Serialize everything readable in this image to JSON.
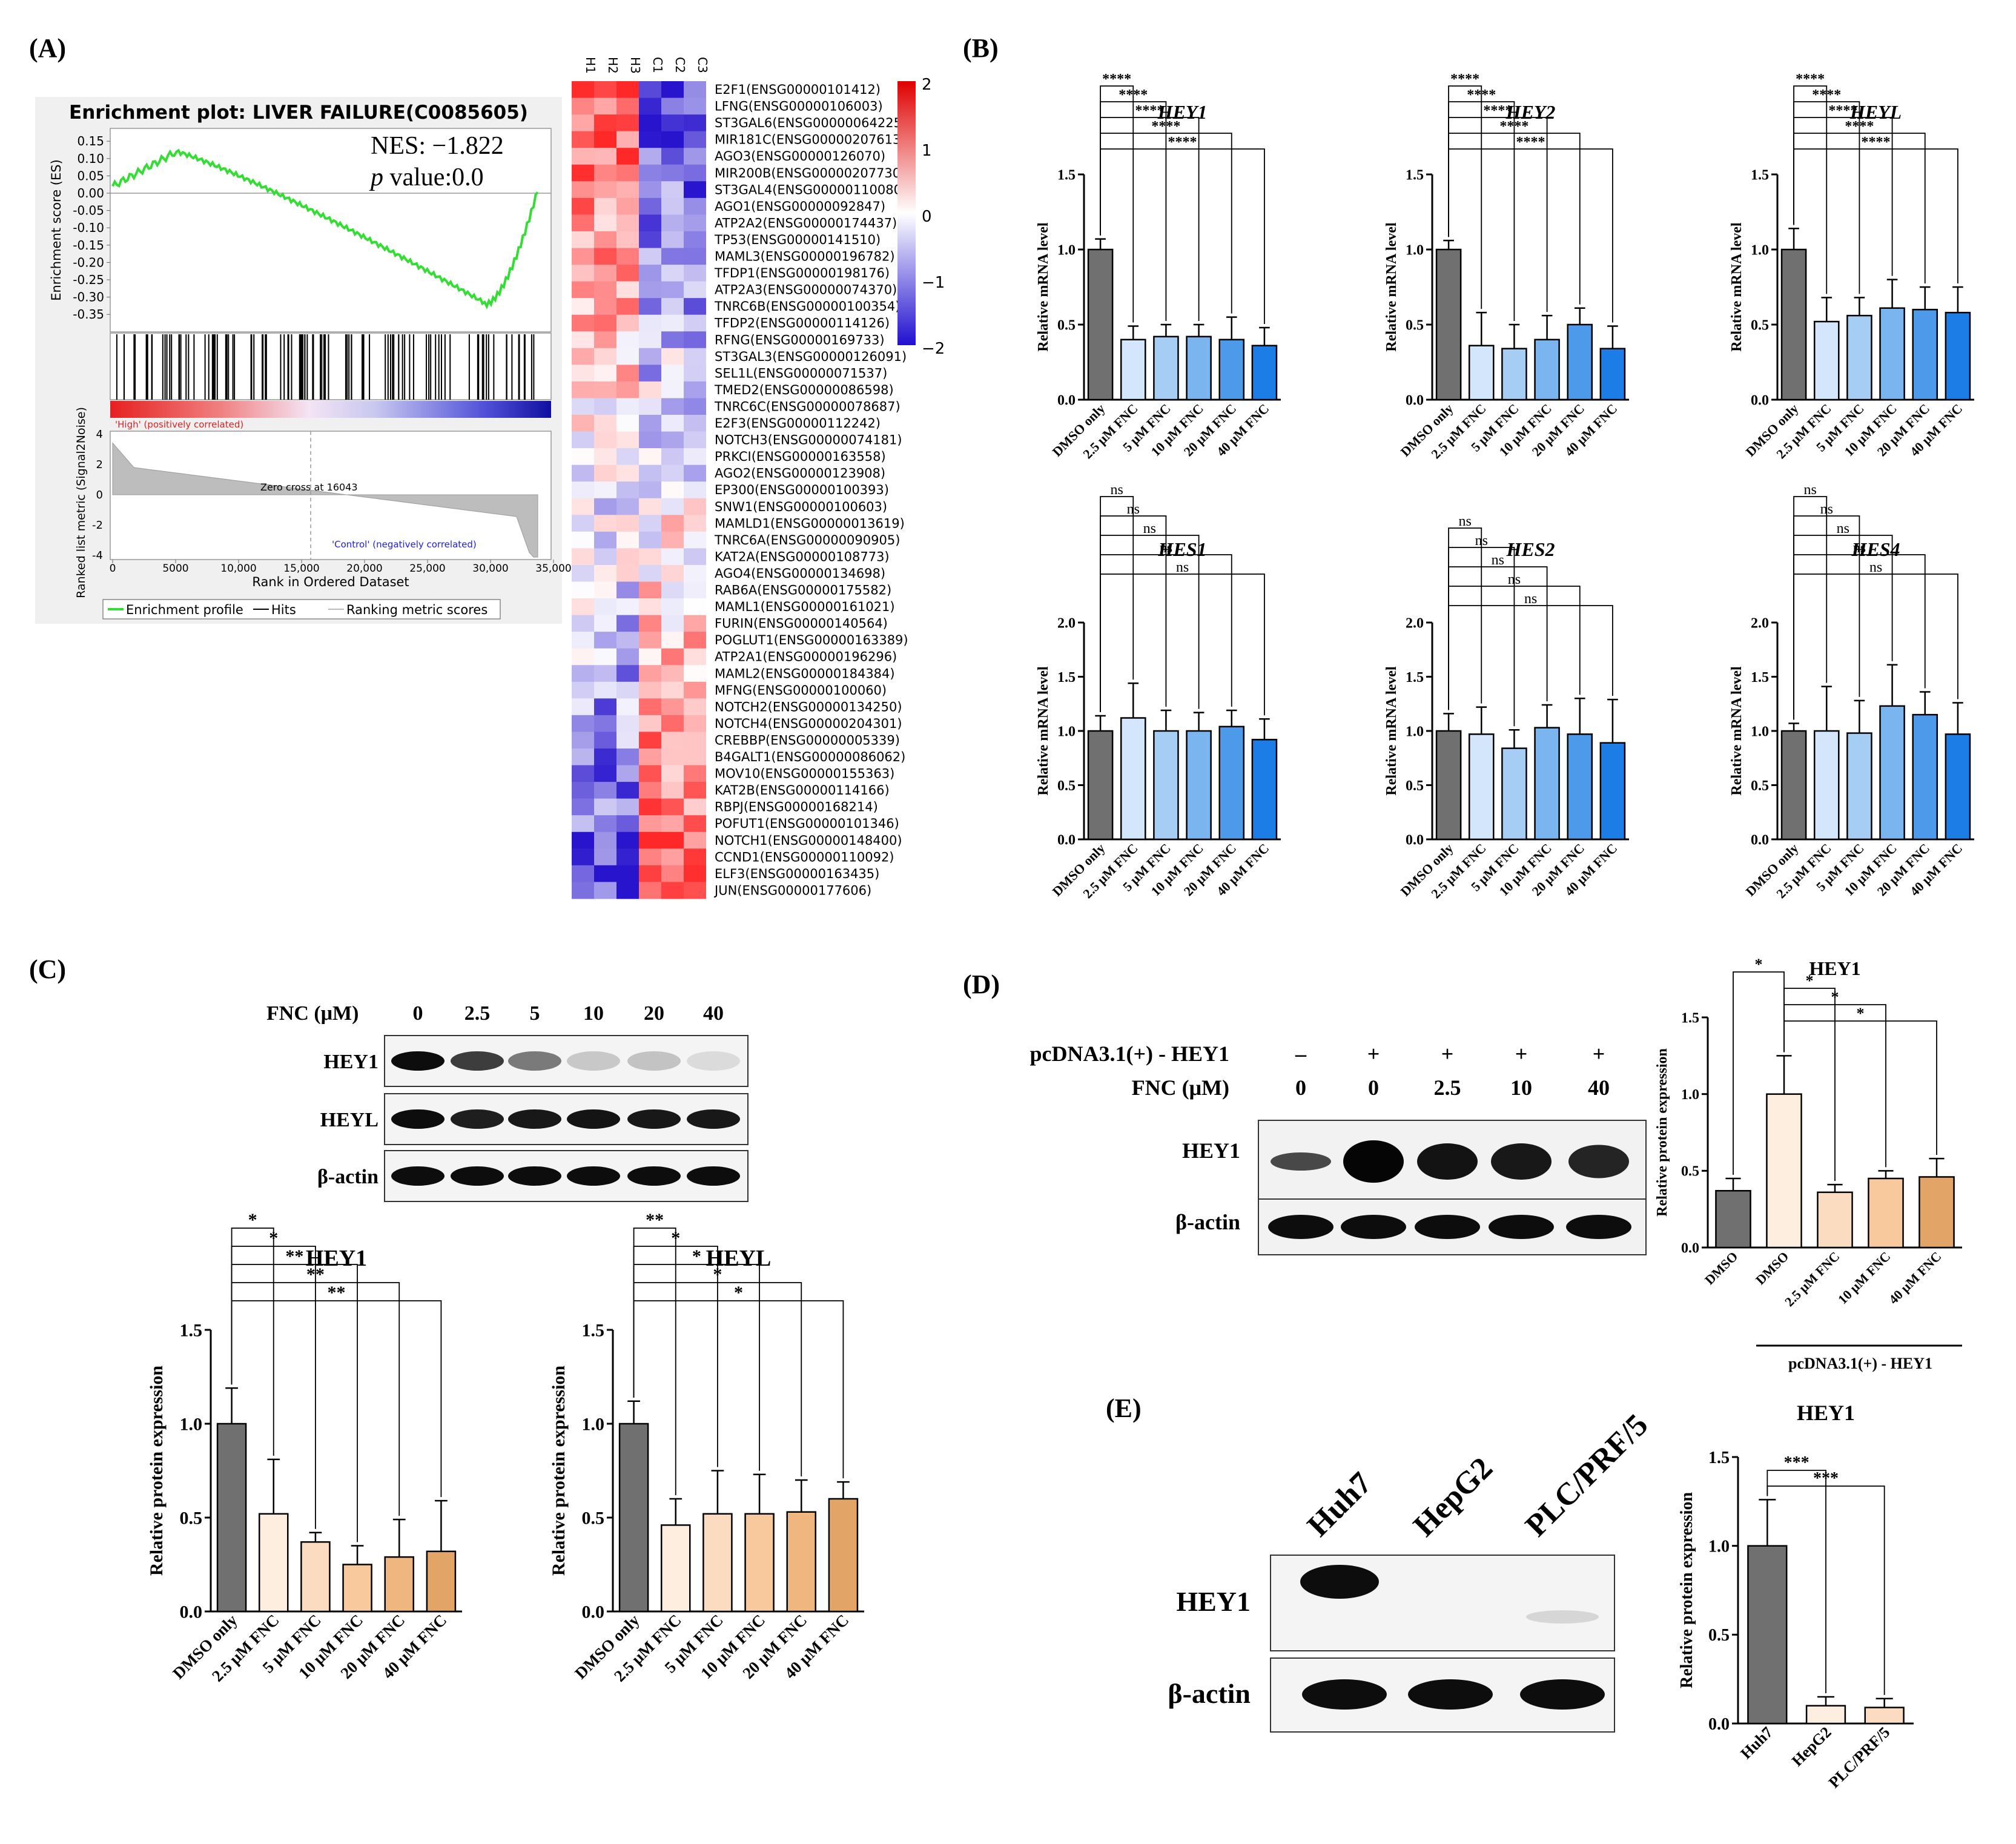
{
  "panel_letters": {
    "A": "(A)",
    "B": "(B)",
    "C": "(C)",
    "D": "(D)",
    "E": "(E)"
  },
  "gsea": {
    "title": "Enrichment plot: LIVER FAILURE(C0085605)",
    "nes": "NES: −1.822",
    "p_label": "p",
    "p_value": " value:0.0",
    "es_axis": "Enrichment score (ES)",
    "metric_axis": "Ranked list metric (Signal2Noise)",
    "x_axis": "Rank in Ordered Dataset",
    "es_ticks": [
      "0.15",
      "0.10",
      "0.05",
      "0.00",
      "-0.05",
      "-0.10",
      "-0.15",
      "-0.20",
      "-0.25",
      "-0.30",
      "-0.35"
    ],
    "metric_ticks": [
      "4",
      "2",
      "0",
      "-2",
      "-4"
    ],
    "x_ticks": [
      "0",
      "5000",
      "10,000",
      "15,000",
      "20,000",
      "25,000",
      "30,000",
      "35,000"
    ],
    "high_label": "'High' (positively correlated)",
    "control_label": "'Control' (negatively correlated)",
    "zero_cross": "Zero cross at 16043",
    "legend": [
      "Enrichment profile",
      "Hits",
      "Ranking metric scores"
    ]
  },
  "heatmap": {
    "samples": [
      "H1",
      "H2",
      "H3",
      "C1",
      "C2",
      "C3"
    ],
    "genes": [
      "E2F1(ENSG00000101412)",
      "LFNG(ENSG00000106003)",
      "ST3GAL6(ENSG00000064225)",
      "MIR181C(ENSG00000207613)",
      "AGO3(ENSG00000126070)",
      "MIR200B(ENSG00000207730)",
      "ST3GAL4(ENSG00000110080)",
      "AGO1(ENSG00000092847)",
      "ATP2A2(ENSG00000174437)",
      "TP53(ENSG00000141510)",
      "MAML3(ENSG00000196782)",
      "TFDP1(ENSG00000198176)",
      "ATP2A3(ENSG00000074370)",
      "TNRC6B(ENSG00000100354)",
      "TFDP2(ENSG00000114126)",
      "RFNG(ENSG00000169733)",
      "ST3GAL3(ENSG00000126091)",
      "SEL1L(ENSG00000071537)",
      "TMED2(ENSG00000086598)",
      "TNRC6C(ENSG00000078687)",
      "E2F3(ENSG00000112242)",
      "NOTCH3(ENSG00000074181)",
      "PRKCI(ENSG00000163558)",
      "AGO2(ENSG00000123908)",
      "EP300(ENSG00000100393)",
      "SNW1(ENSG00000100603)",
      "MAMLD1(ENSG00000013619)",
      "TNRC6A(ENSG00000090905)",
      "KAT2A(ENSG00000108773)",
      "AGO4(ENSG00000134698)",
      "RAB6A(ENSG00000175582)",
      "MAML1(ENSG00000161021)",
      "FURIN(ENSG00000140564)",
      "POGLUT1(ENSG00000163389)",
      "ATP2A1(ENSG00000196296)",
      "MAML2(ENSG00000184384)",
      "MFNG(ENSG00000100060)",
      "NOTCH2(ENSG00000134250)",
      "NOTCH4(ENSG00000204301)",
      "CREBBP(ENSG00000005339)",
      "B4GALT1(ENSG00000086062)",
      "MOV10(ENSG00000155363)",
      "KAT2B(ENSG00000114166)",
      "RBPJ(ENSG00000168214)",
      "POFUT1(ENSG00000101346)",
      "NOTCH1(ENSG00000148400)",
      "CCND1(ENSG00000110092)",
      "ELF3(ENSG00000163435)",
      "JUN(ENSG00000177606)"
    ],
    "scale_labels": [
      "2",
      "1",
      "0",
      "−1",
      "−2"
    ]
  },
  "mrna_charts": [
    {
      "title": "HEY1",
      "ylabel": "Relative mRNA level",
      "ymax": 1.5,
      "ticks": [
        "0.0",
        "0.5",
        "1.0",
        "1.5"
      ],
      "categories": [
        "DMSO only",
        "2.5 μM FNC",
        "5 μM FNC",
        "10 μM FNC",
        "20 μM FNC",
        "40 μM FNC"
      ],
      "values": [
        1.0,
        0.4,
        0.42,
        0.42,
        0.4,
        0.36
      ],
      "errors": [
        0.07,
        0.09,
        0.08,
        0.08,
        0.15,
        0.12
      ],
      "sig": [
        "****",
        "****",
        "****",
        "****",
        "****"
      ],
      "colors": [
        "#707070",
        "#d3e6fb",
        "#a6cef5",
        "#7ab5ef",
        "#4d9aea",
        "#1c7de6"
      ]
    },
    {
      "title": "HEY2",
      "ylabel": "Relative mRNA level",
      "ymax": 1.5,
      "ticks": [
        "0.0",
        "0.5",
        "1.0",
        "1.5"
      ],
      "categories": [
        "DMSO only",
        "2.5 μM FNC",
        "5 μM FNC",
        "10 μM FNC",
        "20 μM FNC",
        "40 μM FNC"
      ],
      "values": [
        1.0,
        0.36,
        0.34,
        0.4,
        0.5,
        0.34
      ],
      "errors": [
        0.06,
        0.22,
        0.16,
        0.16,
        0.11,
        0.15
      ],
      "sig": [
        "****",
        "****",
        "****",
        "****",
        "****"
      ],
      "colors": [
        "#707070",
        "#d3e6fb",
        "#a6cef5",
        "#7ab5ef",
        "#4d9aea",
        "#1c7de6"
      ]
    },
    {
      "title": "HEYL",
      "ylabel": "Relative mRNA level",
      "ymax": 1.5,
      "ticks": [
        "0.0",
        "0.5",
        "1.0",
        "1.5"
      ],
      "categories": [
        "DMSO only",
        "2.5 μM FNC",
        "5 μM FNC",
        "10 μM FNC",
        "20 μM FNC",
        "40 μM FNC"
      ],
      "values": [
        1.0,
        0.52,
        0.56,
        0.61,
        0.6,
        0.58
      ],
      "errors": [
        0.14,
        0.16,
        0.12,
        0.19,
        0.15,
        0.17
      ],
      "sig": [
        "****",
        "****",
        "****",
        "****",
        "****"
      ],
      "colors": [
        "#707070",
        "#d3e6fb",
        "#a6cef5",
        "#7ab5ef",
        "#4d9aea",
        "#1c7de6"
      ]
    },
    {
      "title": "HES1",
      "ylabel": "Relative mRNA level",
      "ymax": 2.0,
      "ticks": [
        "0.0",
        "0.5",
        "1.0",
        "1.5",
        "2.0"
      ],
      "categories": [
        "DMSO only",
        "2.5 μM FNC",
        "5 μM FNC",
        "10 μM FNC",
        "20 μM FNC",
        "40 μM FNC"
      ],
      "values": [
        1.0,
        1.12,
        1.0,
        1.0,
        1.04,
        0.92
      ],
      "errors": [
        0.14,
        0.32,
        0.19,
        0.17,
        0.15,
        0.19
      ],
      "sig": [
        "ns",
        "ns",
        "ns",
        "ns",
        "ns"
      ],
      "colors": [
        "#707070",
        "#d3e6fb",
        "#a6cef5",
        "#7ab5ef",
        "#4d9aea",
        "#1c7de6"
      ]
    },
    {
      "title": "HES2",
      "ylabel": "Relative mRNA level",
      "ymax": 2.0,
      "ticks": [
        "0.0",
        "0.5",
        "1.0",
        "1.5",
        "2.0"
      ],
      "categories": [
        "DMSO only",
        "2.5 μM FNC",
        "5 μM FNC",
        "10 μM FNC",
        "20 μM FNC",
        "40 μM FNC"
      ],
      "values": [
        1.0,
        0.97,
        0.84,
        1.03,
        0.97,
        0.89
      ],
      "errors": [
        0.16,
        0.25,
        0.17,
        0.21,
        0.33,
        0.4
      ],
      "sig": [
        "ns",
        "ns",
        "ns",
        "ns",
        "ns"
      ],
      "colors": [
        "#707070",
        "#d3e6fb",
        "#a6cef5",
        "#7ab5ef",
        "#4d9aea",
        "#1c7de6"
      ]
    },
    {
      "title": "HES4",
      "ylabel": "Relative mRNA level",
      "ymax": 2.0,
      "ticks": [
        "0.0",
        "0.5",
        "1.0",
        "1.5",
        "2.0"
      ],
      "categories": [
        "DMSO only",
        "2.5 μM FNC",
        "5 μM FNC",
        "10 μM FNC",
        "20 μM FNC",
        "40 μM FNC"
      ],
      "values": [
        1.0,
        1.0,
        0.98,
        1.23,
        1.15,
        0.97
      ],
      "errors": [
        0.07,
        0.41,
        0.3,
        0.38,
        0.21,
        0.29
      ],
      "sig": [
        "ns",
        "ns",
        "ns",
        "ns",
        "ns"
      ],
      "colors": [
        "#707070",
        "#d3e6fb",
        "#a6cef5",
        "#7ab5ef",
        "#4d9aea",
        "#1c7de6"
      ]
    }
  ],
  "western_c": {
    "conc_label": "FNC  (μM)",
    "concs": [
      "0",
      "2.5",
      "5",
      "10",
      "20",
      "40"
    ],
    "rows": [
      "HEY1",
      "HEYL",
      "β-actin"
    ]
  },
  "protein_c_charts": [
    {
      "title": "HEY1",
      "ylabel": "Relative protein expression",
      "ymax": 1.5,
      "ticks": [
        "0.0",
        "0.5",
        "1.0",
        "1.5"
      ],
      "categories": [
        "DMSO only",
        "2.5 μM FNC",
        "5 μM FNC",
        "10 μM FNC",
        "20 μM FNC",
        "40 μM FNC"
      ],
      "values": [
        1.0,
        0.52,
        0.37,
        0.25,
        0.29,
        0.32
      ],
      "errors": [
        0.19,
        0.29,
        0.05,
        0.1,
        0.2,
        0.27
      ],
      "sig": [
        "*",
        "*",
        "**",
        "**",
        "**"
      ],
      "colors": [
        "#707070",
        "#fdeee0",
        "#fcdcc0",
        "#f9c99e",
        "#f0b680",
        "#e3a468"
      ]
    },
    {
      "title": "HEYL",
      "ylabel": "Relative protein expression",
      "ymax": 1.5,
      "ticks": [
        "0.0",
        "0.5",
        "1.0",
        "1.5"
      ],
      "categories": [
        "DMSO only",
        "2.5 μM FNC",
        "5 μM FNC",
        "10 μM FNC",
        "20 μM FNC",
        "40 μM FNC"
      ],
      "values": [
        1.0,
        0.46,
        0.52,
        0.52,
        0.53,
        0.6
      ],
      "errors": [
        0.12,
        0.14,
        0.23,
        0.21,
        0.17,
        0.09
      ],
      "sig": [
        "**",
        "*",
        "*",
        "*",
        "*"
      ],
      "colors": [
        "#707070",
        "#fdeee0",
        "#fcdcc0",
        "#f9c99e",
        "#f0b680",
        "#e3a468"
      ]
    }
  ],
  "western_d": {
    "plasmid_label": "pcDNA3.1(+) - HEY1",
    "plasmid": [
      "–",
      "+",
      "+",
      "+",
      "+"
    ],
    "conc_label": "FNC (μM)",
    "concs": [
      "0",
      "0",
      "2.5",
      "10",
      "40"
    ],
    "rows": [
      "HEY1",
      "β-actin"
    ]
  },
  "protein_d_chart": {
    "title": "HEY1",
    "ylabel": "Relative protein expression",
    "ymax": 1.5,
    "ticks": [
      "0.0",
      "0.5",
      "1.0",
      "1.5"
    ],
    "categories": [
      "DMSO",
      "DMSO",
      "2.5 μM FNC",
      "10 μM FNC",
      "40 μM FNC"
    ],
    "values": [
      0.37,
      1.0,
      0.36,
      0.45,
      0.46
    ],
    "errors": [
      0.08,
      0.25,
      0.05,
      0.05,
      0.12
    ],
    "sig_pairs": [
      {
        "a": 0,
        "b": 1,
        "label": "*"
      },
      {
        "a": 1,
        "b": 2,
        "label": "*"
      },
      {
        "a": 1,
        "b": 3,
        "label": "*"
      },
      {
        "a": 1,
        "b": 4,
        "label": "*"
      }
    ],
    "group_label": "pcDNA3.1(+) - HEY1",
    "colors": [
      "#707070",
      "#fdeee0",
      "#fcdcc0",
      "#f9c99e",
      "#e3a468"
    ]
  },
  "western_e": {
    "cells": [
      "Huh7",
      "HepG2",
      "PLC/PRF/5"
    ],
    "rows": [
      "HEY1",
      "β-actin"
    ]
  },
  "protein_e_chart": {
    "title": "HEY1",
    "ylabel": "Relative protein expression",
    "ymax": 1.5,
    "ticks": [
      "0.0",
      "0.5",
      "1.0",
      "1.5"
    ],
    "categories": [
      "Huh7",
      "HepG2",
      "PLC/PRF/5"
    ],
    "values": [
      1.0,
      0.1,
      0.09
    ],
    "errors": [
      0.26,
      0.05,
      0.05
    ],
    "sig": [
      "***",
      "***"
    ],
    "colors": [
      "#707070",
      "#fdeee0",
      "#fcdcc0"
    ]
  },
  "chart_data": [
    {
      "type": "bar",
      "title": "HEY1",
      "ylabel": "Relative mRNA level",
      "categories": [
        "DMSO only",
        "2.5 μM FNC",
        "5 μM FNC",
        "10 μM FNC",
        "20 μM FNC",
        "40 μM FNC"
      ],
      "values": [
        1.0,
        0.4,
        0.42,
        0.42,
        0.4,
        0.36
      ],
      "ylim": [
        0,
        1.5
      ]
    },
    {
      "type": "bar",
      "title": "HEY2",
      "ylabel": "Relative mRNA level",
      "categories": [
        "DMSO only",
        "2.5 μM FNC",
        "5 μM FNC",
        "10 μM FNC",
        "20 μM FNC",
        "40 μM FNC"
      ],
      "values": [
        1.0,
        0.36,
        0.34,
        0.4,
        0.5,
        0.34
      ],
      "ylim": [
        0,
        1.5
      ]
    },
    {
      "type": "bar",
      "title": "HEYL",
      "ylabel": "Relative mRNA level",
      "categories": [
        "DMSO only",
        "2.5 μM FNC",
        "5 μM FNC",
        "10 μM FNC",
        "20 μM FNC",
        "40 μM FNC"
      ],
      "values": [
        1.0,
        0.52,
        0.56,
        0.61,
        0.6,
        0.58
      ],
      "ylim": [
        0,
        1.5
      ]
    },
    {
      "type": "bar",
      "title": "HES1",
      "ylabel": "Relative mRNA level",
      "categories": [
        "DMSO only",
        "2.5 μM FNC",
        "5 μM FNC",
        "10 μM FNC",
        "20 μM FNC",
        "40 μM FNC"
      ],
      "values": [
        1.0,
        1.12,
        1.0,
        1.0,
        1.04,
        0.92
      ],
      "ylim": [
        0,
        2.0
      ]
    },
    {
      "type": "bar",
      "title": "HES2",
      "ylabel": "Relative mRNA level",
      "categories": [
        "DMSO only",
        "2.5 μM FNC",
        "5 μM FNC",
        "10 μM FNC",
        "20 μM FNC",
        "40 μM FNC"
      ],
      "values": [
        1.0,
        0.97,
        0.84,
        1.03,
        0.97,
        0.89
      ],
      "ylim": [
        0,
        2.0
      ]
    },
    {
      "type": "bar",
      "title": "HES4",
      "ylabel": "Relative mRNA level",
      "categories": [
        "DMSO only",
        "2.5 μM FNC",
        "5 μM FNC",
        "10 μM FNC",
        "20 μM FNC",
        "40 μM FNC"
      ],
      "values": [
        1.0,
        1.0,
        0.98,
        1.23,
        1.15,
        0.97
      ],
      "ylim": [
        0,
        2.0
      ]
    },
    {
      "type": "bar",
      "title": "HEY1",
      "ylabel": "Relative protein expression",
      "categories": [
        "DMSO only",
        "2.5 μM FNC",
        "5 μM FNC",
        "10 μM FNC",
        "20 μM FNC",
        "40 μM FNC"
      ],
      "values": [
        1.0,
        0.52,
        0.37,
        0.25,
        0.29,
        0.32
      ],
      "ylim": [
        0,
        1.5
      ]
    },
    {
      "type": "bar",
      "title": "HEYL",
      "ylabel": "Relative protein expression",
      "categories": [
        "DMSO only",
        "2.5 μM FNC",
        "5 μM FNC",
        "10 μM FNC",
        "20 μM FNC",
        "40 μM FNC"
      ],
      "values": [
        1.0,
        0.46,
        0.52,
        0.52,
        0.53,
        0.6
      ],
      "ylim": [
        0,
        1.5
      ]
    },
    {
      "type": "bar",
      "title": "HEY1",
      "ylabel": "Relative protein expression",
      "categories": [
        "DMSO",
        "DMSO",
        "2.5 μM FNC",
        "10 μM FNC",
        "40 μM FNC"
      ],
      "values": [
        0.37,
        1.0,
        0.36,
        0.45,
        0.46
      ],
      "ylim": [
        0,
        1.5
      ]
    },
    {
      "type": "bar",
      "title": "HEY1",
      "ylabel": "Relative protein expression",
      "categories": [
        "Huh7",
        "HepG2",
        "PLC/PRF/5"
      ],
      "values": [
        1.0,
        0.1,
        0.09
      ],
      "ylim": [
        0,
        1.5
      ]
    }
  ]
}
